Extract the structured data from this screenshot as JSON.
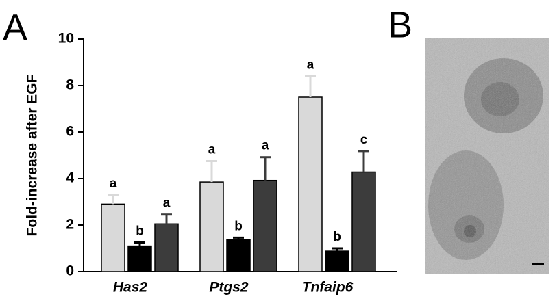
{
  "chart_data": {
    "type": "bar",
    "panel_label": "A",
    "ylabel": "Fold-increase after EGF",
    "categories": [
      "Has2",
      "Ptgs2",
      "Tnfaip6"
    ],
    "series": [
      {
        "color": "#d9d9d9",
        "values": [
          2.9,
          3.85,
          7.5
        ],
        "errors": [
          0.4,
          0.9,
          0.9
        ],
        "labels": [
          "a",
          "a",
          "a"
        ]
      },
      {
        "color": "#000000",
        "values": [
          1.1,
          1.38,
          0.88
        ],
        "errors": [
          0.15,
          0.08,
          0.12
        ],
        "labels": [
          "b",
          "b",
          "b"
        ]
      },
      {
        "color": "#3c3c3c",
        "values": [
          2.05,
          3.92,
          4.28
        ],
        "errors": [
          0.4,
          1.0,
          0.9
        ],
        "labels": [
          "a",
          "a",
          "c"
        ]
      }
    ],
    "ylim": [
      0,
      10
    ],
    "yticks": [
      0,
      2,
      4,
      6,
      8,
      10
    ]
  },
  "image_panel": {
    "panel_label": "B"
  }
}
